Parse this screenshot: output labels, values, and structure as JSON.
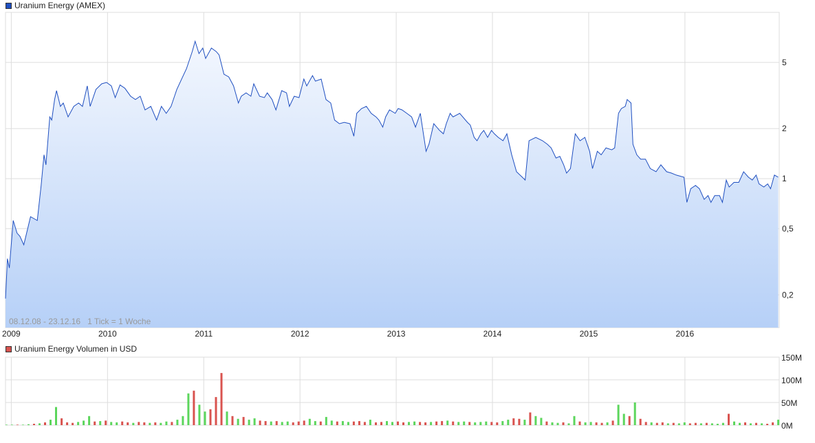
{
  "chart_data": [
    {
      "type": "area",
      "title": "Uranium Energy (AMEX)",
      "color": "#1f4fc0",
      "yscale": "log",
      "ylim": [
        0.127,
        10
      ],
      "yticks": [
        {
          "v": 5,
          "label": "5"
        },
        {
          "v": 2,
          "label": "2"
        },
        {
          "v": 1,
          "label": "1"
        },
        {
          "v": 0.5,
          "label": "0,5"
        },
        {
          "v": 0.2,
          "label": "0,2"
        }
      ],
      "xticks": [
        {
          "v": 2009,
          "label": "2009"
        },
        {
          "v": 2010,
          "label": "2010"
        },
        {
          "v": 2011,
          "label": "2011"
        },
        {
          "v": 2012,
          "label": "2012"
        },
        {
          "v": 2013,
          "label": "2013"
        },
        {
          "v": 2014,
          "label": "2014"
        },
        {
          "v": 2015,
          "label": "2015"
        },
        {
          "v": 2016,
          "label": "2016"
        }
      ],
      "xlim": [
        2008.94,
        2016.98
      ],
      "info_label": "08.12.08 - 23.12.16   1 Tick = 1 Woche",
      "points": [
        [
          2008.94,
          0.19
        ],
        [
          2008.96,
          0.33
        ],
        [
          2008.98,
          0.29
        ],
        [
          2009.02,
          0.56
        ],
        [
          2009.06,
          0.47
        ],
        [
          2009.09,
          0.45
        ],
        [
          2009.13,
          0.4
        ],
        [
          2009.2,
          0.59
        ],
        [
          2009.27,
          0.56
        ],
        [
          2009.31,
          0.91
        ],
        [
          2009.34,
          1.39
        ],
        [
          2009.36,
          1.21
        ],
        [
          2009.4,
          2.35
        ],
        [
          2009.42,
          2.25
        ],
        [
          2009.45,
          2.99
        ],
        [
          2009.47,
          3.38
        ],
        [
          2009.51,
          2.72
        ],
        [
          2009.54,
          2.85
        ],
        [
          2009.59,
          2.35
        ],
        [
          2009.65,
          2.72
        ],
        [
          2009.7,
          2.85
        ],
        [
          2009.74,
          2.72
        ],
        [
          2009.79,
          3.61
        ],
        [
          2009.82,
          2.72
        ],
        [
          2009.88,
          3.44
        ],
        [
          2009.94,
          3.72
        ],
        [
          2009.99,
          3.79
        ],
        [
          2010.04,
          3.61
        ],
        [
          2010.08,
          3.07
        ],
        [
          2010.13,
          3.66
        ],
        [
          2010.18,
          3.5
        ],
        [
          2010.24,
          3.13
        ],
        [
          2010.29,
          2.99
        ],
        [
          2010.34,
          3.13
        ],
        [
          2010.39,
          2.59
        ],
        [
          2010.45,
          2.72
        ],
        [
          2010.51,
          2.25
        ],
        [
          2010.56,
          2.72
        ],
        [
          2010.61,
          2.47
        ],
        [
          2010.66,
          2.72
        ],
        [
          2010.72,
          3.44
        ],
        [
          2010.77,
          3.97
        ],
        [
          2010.82,
          4.58
        ],
        [
          2010.88,
          5.81
        ],
        [
          2010.91,
          6.7
        ],
        [
          2010.95,
          5.65
        ],
        [
          2010.99,
          6.1
        ],
        [
          2011.02,
          5.28
        ],
        [
          2011.08,
          6.1
        ],
        [
          2011.13,
          5.81
        ],
        [
          2011.16,
          5.54
        ],
        [
          2011.21,
          4.25
        ],
        [
          2011.26,
          4.09
        ],
        [
          2011.31,
          3.61
        ],
        [
          2011.36,
          2.85
        ],
        [
          2011.39,
          3.13
        ],
        [
          2011.44,
          3.28
        ],
        [
          2011.49,
          3.13
        ],
        [
          2011.52,
          3.72
        ],
        [
          2011.58,
          3.13
        ],
        [
          2011.63,
          3.07
        ],
        [
          2011.66,
          3.28
        ],
        [
          2011.71,
          2.99
        ],
        [
          2011.75,
          2.59
        ],
        [
          2011.81,
          3.38
        ],
        [
          2011.86,
          3.28
        ],
        [
          2011.89,
          2.72
        ],
        [
          2011.94,
          3.13
        ],
        [
          2011.99,
          3.07
        ],
        [
          2012.04,
          3.97
        ],
        [
          2012.07,
          3.61
        ],
        [
          2012.13,
          4.17
        ],
        [
          2012.16,
          3.86
        ],
        [
          2012.22,
          3.97
        ],
        [
          2012.27,
          2.99
        ],
        [
          2012.32,
          2.85
        ],
        [
          2012.36,
          2.25
        ],
        [
          2012.41,
          2.14
        ],
        [
          2012.46,
          2.18
        ],
        [
          2012.52,
          2.14
        ],
        [
          2012.56,
          1.8
        ],
        [
          2012.59,
          2.47
        ],
        [
          2012.64,
          2.64
        ],
        [
          2012.69,
          2.72
        ],
        [
          2012.74,
          2.47
        ],
        [
          2012.79,
          2.35
        ],
        [
          2012.82,
          2.25
        ],
        [
          2012.86,
          2.04
        ],
        [
          2012.89,
          2.35
        ],
        [
          2012.93,
          2.59
        ],
        [
          2012.99,
          2.47
        ],
        [
          2013.02,
          2.64
        ],
        [
          2013.06,
          2.59
        ],
        [
          2013.11,
          2.47
        ],
        [
          2013.16,
          2.35
        ],
        [
          2013.2,
          2.04
        ],
        [
          2013.25,
          2.47
        ],
        [
          2013.31,
          1.46
        ],
        [
          2013.34,
          1.61
        ],
        [
          2013.39,
          2.14
        ],
        [
          2013.45,
          1.95
        ],
        [
          2013.49,
          1.86
        ],
        [
          2013.52,
          2.14
        ],
        [
          2013.56,
          2.47
        ],
        [
          2013.59,
          2.35
        ],
        [
          2013.66,
          2.47
        ],
        [
          2013.74,
          2.18
        ],
        [
          2013.77,
          2.1
        ],
        [
          2013.81,
          1.77
        ],
        [
          2013.84,
          1.69
        ],
        [
          2013.88,
          1.86
        ],
        [
          2013.91,
          1.95
        ],
        [
          2013.95,
          1.77
        ],
        [
          2013.99,
          1.95
        ],
        [
          2014.02,
          1.86
        ],
        [
          2014.06,
          1.77
        ],
        [
          2014.11,
          1.69
        ],
        [
          2014.15,
          1.86
        ],
        [
          2014.2,
          1.39
        ],
        [
          2014.25,
          1.1
        ],
        [
          2014.31,
          1.02
        ],
        [
          2014.34,
          0.98
        ],
        [
          2014.38,
          1.69
        ],
        [
          2014.45,
          1.77
        ],
        [
          2014.52,
          1.69
        ],
        [
          2014.57,
          1.61
        ],
        [
          2014.61,
          1.53
        ],
        [
          2014.66,
          1.33
        ],
        [
          2014.7,
          1.36
        ],
        [
          2014.74,
          1.21
        ],
        [
          2014.77,
          1.08
        ],
        [
          2014.81,
          1.15
        ],
        [
          2014.86,
          1.86
        ],
        [
          2014.91,
          1.69
        ],
        [
          2014.96,
          1.77
        ],
        [
          2015.01,
          1.46
        ],
        [
          2015.04,
          1.15
        ],
        [
          2015.09,
          1.46
        ],
        [
          2015.13,
          1.39
        ],
        [
          2015.18,
          1.53
        ],
        [
          2015.24,
          1.49
        ],
        [
          2015.27,
          1.53
        ],
        [
          2015.31,
          2.47
        ],
        [
          2015.34,
          2.64
        ],
        [
          2015.38,
          2.72
        ],
        [
          2015.4,
          2.99
        ],
        [
          2015.44,
          2.85
        ],
        [
          2015.46,
          1.61
        ],
        [
          2015.5,
          1.39
        ],
        [
          2015.54,
          1.31
        ],
        [
          2015.59,
          1.31
        ],
        [
          2015.64,
          1.15
        ],
        [
          2015.7,
          1.1
        ],
        [
          2015.75,
          1.21
        ],
        [
          2015.81,
          1.1
        ],
        [
          2015.86,
          1.08
        ],
        [
          2015.91,
          1.05
        ],
        [
          2015.99,
          1.02
        ],
        [
          2016.02,
          0.72
        ],
        [
          2016.06,
          0.87
        ],
        [
          2016.11,
          0.91
        ],
        [
          2016.15,
          0.87
        ],
        [
          2016.2,
          0.75
        ],
        [
          2016.24,
          0.79
        ],
        [
          2016.27,
          0.72
        ],
        [
          2016.31,
          0.79
        ],
        [
          2016.36,
          0.79
        ],
        [
          2016.39,
          0.72
        ],
        [
          2016.43,
          0.98
        ],
        [
          2016.46,
          0.89
        ],
        [
          2016.51,
          0.95
        ],
        [
          2016.56,
          0.95
        ],
        [
          2016.61,
          1.1
        ],
        [
          2016.66,
          1.02
        ],
        [
          2016.7,
          0.98
        ],
        [
          2016.74,
          1.05
        ],
        [
          2016.77,
          0.93
        ],
        [
          2016.82,
          0.89
        ],
        [
          2016.86,
          0.93
        ],
        [
          2016.89,
          0.87
        ],
        [
          2016.93,
          1.05
        ],
        [
          2016.97,
          1.02
        ]
      ]
    },
    {
      "type": "bar",
      "title": "Uranium Energy Volumen in USD",
      "legend_color": "#d9534f",
      "up_color": "#5cd65c",
      "down_color": "#d9534f",
      "ylim": [
        0,
        150
      ],
      "yticks": [
        {
          "v": 150,
          "label": "150M"
        },
        {
          "v": 100,
          "label": "100M"
        },
        {
          "v": 50,
          "label": "50M"
        },
        {
          "v": 0,
          "label": "0M"
        }
      ],
      "xlim": [
        2008.94,
        2016.98
      ],
      "x_start": 2008.95,
      "x_end": 2016.97,
      "unit": "M USD",
      "values": [
        1,
        1,
        1,
        1,
        2,
        3,
        4,
        6,
        12,
        40,
        15,
        6,
        5,
        7,
        10,
        20,
        8,
        9,
        10,
        7,
        6,
        8,
        6,
        5,
        7,
        6,
        5,
        6,
        5,
        8,
        7,
        12,
        20,
        70,
        76,
        45,
        30,
        35,
        62,
        115,
        30,
        20,
        14,
        18,
        12,
        15,
        10,
        9,
        8,
        9,
        7,
        8,
        6,
        8,
        10,
        14,
        9,
        8,
        18,
        10,
        8,
        9,
        7,
        8,
        9,
        7,
        12,
        6,
        7,
        9,
        7,
        8,
        6,
        7,
        8,
        7,
        6,
        7,
        8,
        9,
        10,
        8,
        7,
        8,
        7,
        6,
        7,
        8,
        7,
        6,
        9,
        12,
        15,
        14,
        12,
        28,
        20,
        16,
        8,
        6,
        5,
        6,
        4,
        20,
        8,
        6,
        7,
        6,
        5,
        6,
        10,
        45,
        25,
        20,
        50,
        14,
        7,
        6,
        5,
        6,
        4,
        5,
        4,
        6,
        4,
        5,
        4,
        5,
        4,
        3,
        5,
        25,
        8,
        5,
        6,
        4,
        5,
        4,
        3,
        6,
        12
      ],
      "direction": "uuduududuuddduuududuuddudduduuduuuduudddududuudduduuddduuduuduudddudduudduuddudduduuduuudduudduduuduuduuduudduduududdudduduudduduuuduudududdudududuudduudududu"
    }
  ]
}
